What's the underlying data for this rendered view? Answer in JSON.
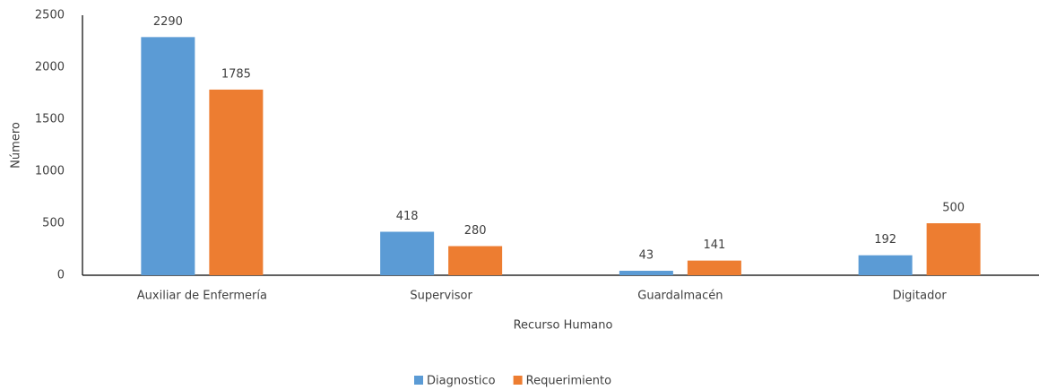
{
  "chart_data": {
    "type": "bar",
    "categories": [
      "Auxiliar de Enfermería",
      "Supervisor",
      "Guardalmacén",
      "Digitador"
    ],
    "series": [
      {
        "name": "Diagnostico",
        "color": "#5b9bd5",
        "values": [
          2290,
          418,
          43,
          192
        ]
      },
      {
        "name": "Requerimiento",
        "color": "#ed7d31",
        "values": [
          1785,
          280,
          141,
          500
        ]
      }
    ],
    "x_label": "Recurso Humano",
    "y_label": "Número",
    "ylim": [
      0,
      2500
    ],
    "yticks": [
      0,
      500,
      1000,
      1500,
      2000,
      2500
    ],
    "grid": false,
    "legend": "bottom"
  }
}
